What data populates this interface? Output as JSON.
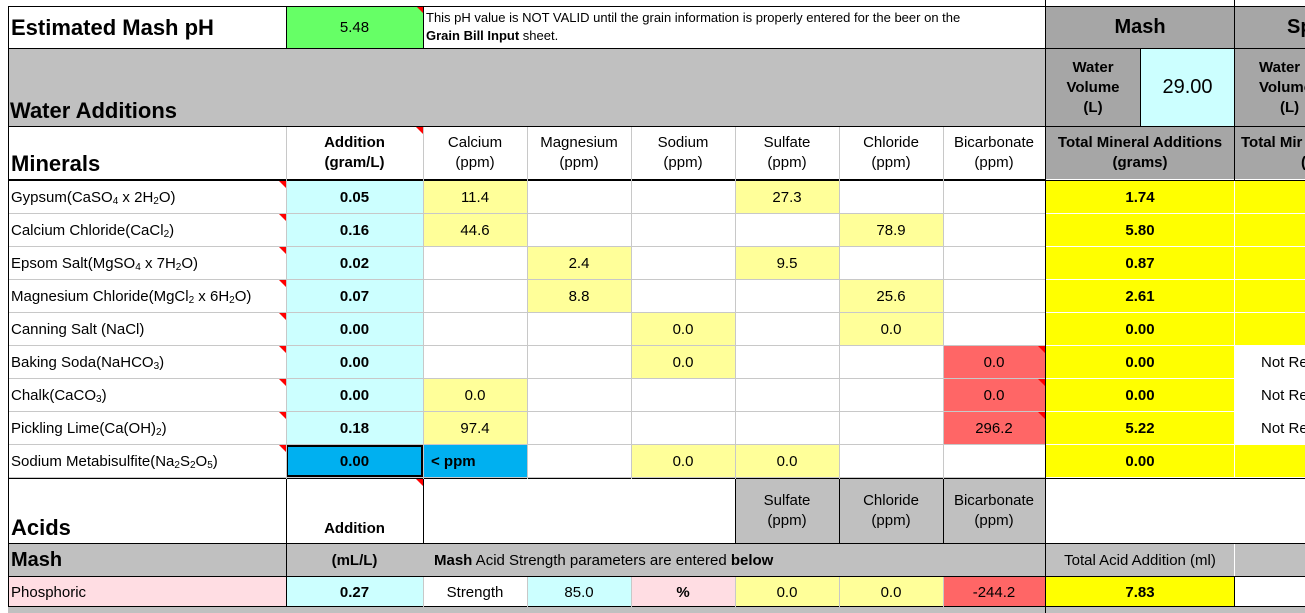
{
  "ph": {
    "label": "Estimated Mash pH",
    "value": "5.48",
    "note_line1": "This pH value is NOT VALID until the grain information is properly entered for the beer on the",
    "note_bold": "Grain Bill Input",
    "note_rest": " sheet."
  },
  "water_additions": {
    "label": "Water Additions"
  },
  "mash_panel": {
    "title": "Mash",
    "title_cut": "Sp",
    "water_volume_label": [
      "Water",
      "Volume",
      "(L)"
    ],
    "water_volume_cut": [
      "Water",
      "Volume",
      "(L)"
    ],
    "water_volume_value": "29.00",
    "total_mineral_label": [
      "Total Mineral Additions",
      "(grams)"
    ],
    "total_mineral_cut": "Total Mir",
    "total_mineral_cut2": "(",
    "not_req": "Not Re"
  },
  "minerals": {
    "title": "Minerals",
    "col_addition": [
      "Addition",
      "(gram/L)"
    ],
    "columns": [
      {
        "name": "Calcium",
        "unit": "(ppm)"
      },
      {
        "name": "Magnesium",
        "unit": "(ppm)"
      },
      {
        "name": "Sodium",
        "unit": "(ppm)"
      },
      {
        "name": "Sulfate",
        "unit": "(ppm)"
      },
      {
        "name": "Chloride",
        "unit": "(ppm)"
      },
      {
        "name": "Bicarbonate",
        "unit": "(ppm)"
      }
    ],
    "rows": [
      {
        "name": "Gypsum",
        "addition": "0.05",
        "ca": "11.4",
        "mg": "",
        "na": "",
        "so4": "27.3",
        "cl": "",
        "hco3": "",
        "total": "1.74",
        "sparge": ""
      },
      {
        "name": "Calcium Chloride",
        "addition": "0.16",
        "ca": "44.6",
        "mg": "",
        "na": "",
        "so4": "",
        "cl": "78.9",
        "hco3": "",
        "total": "5.80",
        "sparge": ""
      },
      {
        "name": "Epsom Salt",
        "addition": "0.02",
        "ca": "",
        "mg": "2.4",
        "na": "",
        "so4": "9.5",
        "cl": "",
        "hco3": "",
        "total": "0.87",
        "sparge": ""
      },
      {
        "name": "Magnesium Chloride",
        "addition": "0.07",
        "ca": "",
        "mg": "8.8",
        "na": "",
        "so4": "",
        "cl": "25.6",
        "hco3": "",
        "total": "2.61",
        "sparge": ""
      },
      {
        "name": "Canning Salt (NaCl)",
        "addition": "0.00",
        "ca": "",
        "mg": "",
        "na": "0.0",
        "so4": "",
        "cl": "0.0",
        "hco3": "",
        "total": "0.00",
        "sparge": ""
      },
      {
        "name": "Baking Soda",
        "addition": "0.00",
        "ca": "",
        "mg": "",
        "na": "0.0",
        "so4": "",
        "cl": "",
        "hco3": "0.0",
        "total": "0.00",
        "sparge": "Not Re"
      },
      {
        "name": "Chalk",
        "addition": "0.00",
        "ca": "0.0",
        "mg": "",
        "na": "",
        "so4": "",
        "cl": "",
        "hco3": "0.0",
        "total": "0.00",
        "sparge": "Not Re"
      },
      {
        "name": "Pickling Lime",
        "addition": "0.18",
        "ca": "97.4",
        "mg": "",
        "na": "",
        "so4": "",
        "cl": "",
        "hco3": "296.2",
        "total": "5.22",
        "sparge": "Not Re"
      },
      {
        "name": "Sodium Metabisulfite",
        "addition": "0.00",
        "ca": "< ppm",
        "mg": "",
        "na": "0.0",
        "so4": "0.0",
        "cl": "",
        "hco3": "",
        "total": "0.00",
        "sparge": ""
      }
    ]
  },
  "acids": {
    "title": "Acids",
    "col_addition": "Addition",
    "mash_label": "Mash",
    "unit": "(mL/L)",
    "note_bold": "Mash",
    "note_rest": " Acid Strength parameters are entered ",
    "note_bold2": "below",
    "total_label": "Total Acid Addition (ml)",
    "columns": [
      {
        "name": "Sulfate",
        "unit": "(ppm)"
      },
      {
        "name": "Chloride",
        "unit": "(ppm)"
      },
      {
        "name": "Bicarbonate",
        "unit": "(ppm)"
      }
    ],
    "row": {
      "name": "Phosphoric",
      "addition": "0.27",
      "strength_label": "Strength",
      "strength": "85.0",
      "pct": "%",
      "so4": "0.0",
      "cl": "0.0",
      "hco3": "-244.2",
      "total": "7.83"
    }
  }
}
